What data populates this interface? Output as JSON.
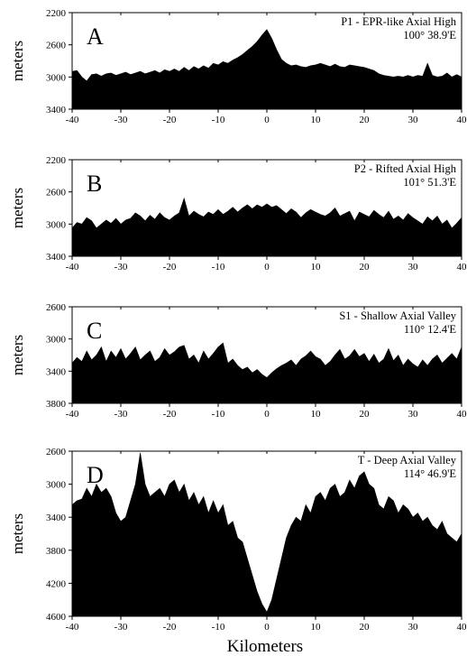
{
  "figure": {
    "xlabel": "Kilometers"
  },
  "chart_data": [
    {
      "type": "area",
      "panel_letter": "A",
      "title": "P1 - EPR-like Axial High",
      "longitude": "100° 38.9'E",
      "ylabel": "meters",
      "xlim": [
        -40,
        40
      ],
      "ylim": [
        3400,
        2200
      ],
      "y_inverted": true,
      "xticks": [
        -40,
        -30,
        -20,
        -10,
        0,
        10,
        20,
        30,
        40
      ],
      "yticks": [
        2200,
        2600,
        3000,
        3400
      ],
      "baseline": 3400,
      "x": [
        -40,
        -39,
        -38,
        -37,
        -36,
        -35,
        -34,
        -33,
        -32,
        -31,
        -30,
        -29,
        -28,
        -27,
        -26,
        -25,
        -24,
        -23,
        -22,
        -21,
        -20,
        -19,
        -18,
        -17,
        -16,
        -15,
        -14,
        -13,
        -12,
        -11,
        -10,
        -9,
        -8,
        -7,
        -6,
        -5,
        -4,
        -3,
        -2,
        -1,
        0,
        1,
        2,
        3,
        4,
        5,
        6,
        7,
        8,
        9,
        10,
        11,
        12,
        13,
        14,
        15,
        16,
        17,
        18,
        19,
        20,
        21,
        22,
        23,
        24,
        25,
        26,
        27,
        28,
        29,
        30,
        31,
        32,
        33,
        34,
        35,
        36,
        37,
        38,
        39,
        40
      ],
      "depth": [
        2930,
        2920,
        3000,
        3050,
        2970,
        2960,
        2990,
        2960,
        2950,
        2980,
        2960,
        2940,
        2970,
        2950,
        2930,
        2960,
        2940,
        2920,
        2950,
        2910,
        2930,
        2900,
        2930,
        2880,
        2920,
        2870,
        2900,
        2860,
        2890,
        2830,
        2850,
        2810,
        2830,
        2790,
        2760,
        2720,
        2670,
        2620,
        2560,
        2480,
        2410,
        2520,
        2660,
        2780,
        2830,
        2860,
        2850,
        2870,
        2880,
        2860,
        2850,
        2830,
        2850,
        2870,
        2840,
        2870,
        2880,
        2850,
        2860,
        2870,
        2880,
        2900,
        2920,
        2960,
        2980,
        2990,
        3000,
        2990,
        3000,
        2980,
        3000,
        2980,
        2990,
        2830,
        2980,
        3000,
        2990,
        2950,
        3000,
        2970,
        3000
      ]
    },
    {
      "type": "area",
      "panel_letter": "B",
      "title": "P2 - Rifted Axial High",
      "longitude": "101° 51.3'E",
      "ylabel": "meters",
      "xlim": [
        -40,
        40
      ],
      "ylim": [
        3400,
        2200
      ],
      "y_inverted": true,
      "xticks": [
        -40,
        -30,
        -20,
        -10,
        0,
        10,
        20,
        30,
        40
      ],
      "yticks": [
        2200,
        2600,
        3000,
        3400
      ],
      "baseline": 3400,
      "x": [
        -40,
        -39,
        -38,
        -37,
        -36,
        -35,
        -34,
        -33,
        -32,
        -31,
        -30,
        -29,
        -28,
        -27,
        -26,
        -25,
        -24,
        -23,
        -22,
        -21,
        -20,
        -19,
        -18,
        -17,
        -16,
        -15,
        -14,
        -13,
        -12,
        -11,
        -10,
        -9,
        -8,
        -7,
        -6,
        -5,
        -4,
        -3,
        -2,
        -1,
        0,
        1,
        2,
        3,
        4,
        5,
        6,
        7,
        8,
        9,
        10,
        11,
        12,
        13,
        14,
        15,
        16,
        17,
        18,
        19,
        20,
        21,
        22,
        23,
        24,
        25,
        26,
        27,
        28,
        29,
        30,
        31,
        32,
        33,
        34,
        35,
        36,
        37,
        38,
        39,
        40
      ],
      "depth": [
        3050,
        2980,
        3000,
        2920,
        2960,
        3050,
        3000,
        2950,
        2990,
        2930,
        3000,
        2950,
        2930,
        2860,
        2900,
        2960,
        2890,
        2940,
        2860,
        2920,
        2950,
        2900,
        2860,
        2680,
        2900,
        2840,
        2880,
        2910,
        2850,
        2880,
        2820,
        2880,
        2840,
        2790,
        2850,
        2800,
        2760,
        2810,
        2760,
        2790,
        2750,
        2790,
        2770,
        2820,
        2870,
        2810,
        2850,
        2920,
        2860,
        2820,
        2850,
        2880,
        2900,
        2860,
        2800,
        2900,
        2870,
        2840,
        2960,
        2850,
        2880,
        2910,
        2830,
        2880,
        2920,
        2840,
        2940,
        2900,
        2950,
        2870,
        2920,
        2960,
        3000,
        2910,
        2960,
        2900,
        3000,
        2950,
        3050,
        2990,
        2920
      ]
    },
    {
      "type": "area",
      "panel_letter": "C",
      "title": "S1 - Shallow Axial Valley",
      "longitude": "110° 12.4'E",
      "ylabel": "meters",
      "xlim": [
        -40,
        40
      ],
      "ylim": [
        3800,
        2600
      ],
      "y_inverted": true,
      "xticks": [
        -40,
        -30,
        -20,
        -10,
        0,
        10,
        20,
        30,
        40
      ],
      "yticks": [
        2600,
        3000,
        3400,
        3800
      ],
      "baseline": 3800,
      "x": [
        -40,
        -39,
        -38,
        -37,
        -36,
        -35,
        -34,
        -33,
        -32,
        -31,
        -30,
        -29,
        -28,
        -27,
        -26,
        -25,
        -24,
        -23,
        -22,
        -21,
        -20,
        -19,
        -18,
        -17,
        -16,
        -15,
        -14,
        -13,
        -12,
        -11,
        -10,
        -9,
        -8,
        -7,
        -6,
        -5,
        -4,
        -3,
        -2,
        -1,
        0,
        1,
        2,
        3,
        4,
        5,
        6,
        7,
        8,
        9,
        10,
        11,
        12,
        13,
        14,
        15,
        16,
        17,
        18,
        19,
        20,
        21,
        22,
        23,
        24,
        25,
        26,
        27,
        28,
        29,
        30,
        31,
        32,
        33,
        34,
        35,
        36,
        37,
        38,
        39,
        40
      ],
      "depth": [
        3300,
        3230,
        3280,
        3150,
        3260,
        3200,
        3100,
        3280,
        3150,
        3230,
        3120,
        3250,
        3180,
        3100,
        3260,
        3200,
        3150,
        3280,
        3230,
        3120,
        3200,
        3160,
        3100,
        3080,
        3250,
        3200,
        3300,
        3150,
        3250,
        3180,
        3100,
        3050,
        3300,
        3250,
        3330,
        3380,
        3350,
        3420,
        3380,
        3440,
        3480,
        3420,
        3370,
        3330,
        3300,
        3260,
        3330,
        3250,
        3210,
        3150,
        3220,
        3250,
        3330,
        3280,
        3200,
        3130,
        3250,
        3210,
        3130,
        3220,
        3180,
        3280,
        3190,
        3300,
        3250,
        3120,
        3270,
        3200,
        3330,
        3250,
        3310,
        3350,
        3260,
        3330,
        3250,
        3200,
        3300,
        3240,
        3180,
        3250,
        3100
      ]
    },
    {
      "type": "area",
      "panel_letter": "D",
      "title": "T - Deep Axial Valley",
      "longitude": "114° 46.9'E",
      "ylabel": "meters",
      "xlim": [
        -40,
        40
      ],
      "ylim": [
        4600,
        2600
      ],
      "y_inverted": true,
      "xticks": [
        -40,
        -30,
        -20,
        -10,
        0,
        10,
        20,
        30,
        40
      ],
      "yticks": [
        2600,
        3000,
        3400,
        3800,
        4200,
        4600
      ],
      "baseline": 4600,
      "x": [
        -40,
        -39,
        -38,
        -37,
        -36,
        -35,
        -34,
        -33,
        -32,
        -31,
        -30,
        -29,
        -28,
        -27,
        -26,
        -25,
        -24,
        -23,
        -22,
        -21,
        -20,
        -19,
        -18,
        -17,
        -16,
        -15,
        -14,
        -13,
        -12,
        -11,
        -10,
        -9,
        -8,
        -7,
        -6,
        -5,
        -4,
        -3,
        -2,
        -1,
        0,
        1,
        2,
        3,
        4,
        5,
        6,
        7,
        8,
        9,
        10,
        11,
        12,
        13,
        14,
        15,
        16,
        17,
        18,
        19,
        20,
        21,
        22,
        23,
        24,
        25,
        26,
        27,
        28,
        29,
        30,
        31,
        32,
        33,
        34,
        35,
        36,
        37,
        38,
        39,
        40
      ],
      "depth": [
        3250,
        3200,
        3180,
        3050,
        3150,
        3000,
        3100,
        3050,
        3150,
        3350,
        3450,
        3400,
        3200,
        3000,
        2620,
        3000,
        3150,
        3100,
        3050,
        3150,
        3000,
        2950,
        3100,
        3000,
        3200,
        3100,
        3250,
        3150,
        3350,
        3200,
        3350,
        3250,
        3500,
        3450,
        3650,
        3700,
        3900,
        4100,
        4300,
        4450,
        4550,
        4400,
        4150,
        3900,
        3650,
        3500,
        3400,
        3450,
        3250,
        3350,
        3150,
        3100,
        3200,
        3050,
        3000,
        3150,
        3100,
        2950,
        3050,
        2900,
        2850,
        3000,
        3050,
        3250,
        3300,
        3150,
        3200,
        3350,
        3250,
        3300,
        3400,
        3350,
        3450,
        3400,
        3500,
        3550,
        3450,
        3600,
        3650,
        3700,
        3600
      ]
    }
  ]
}
